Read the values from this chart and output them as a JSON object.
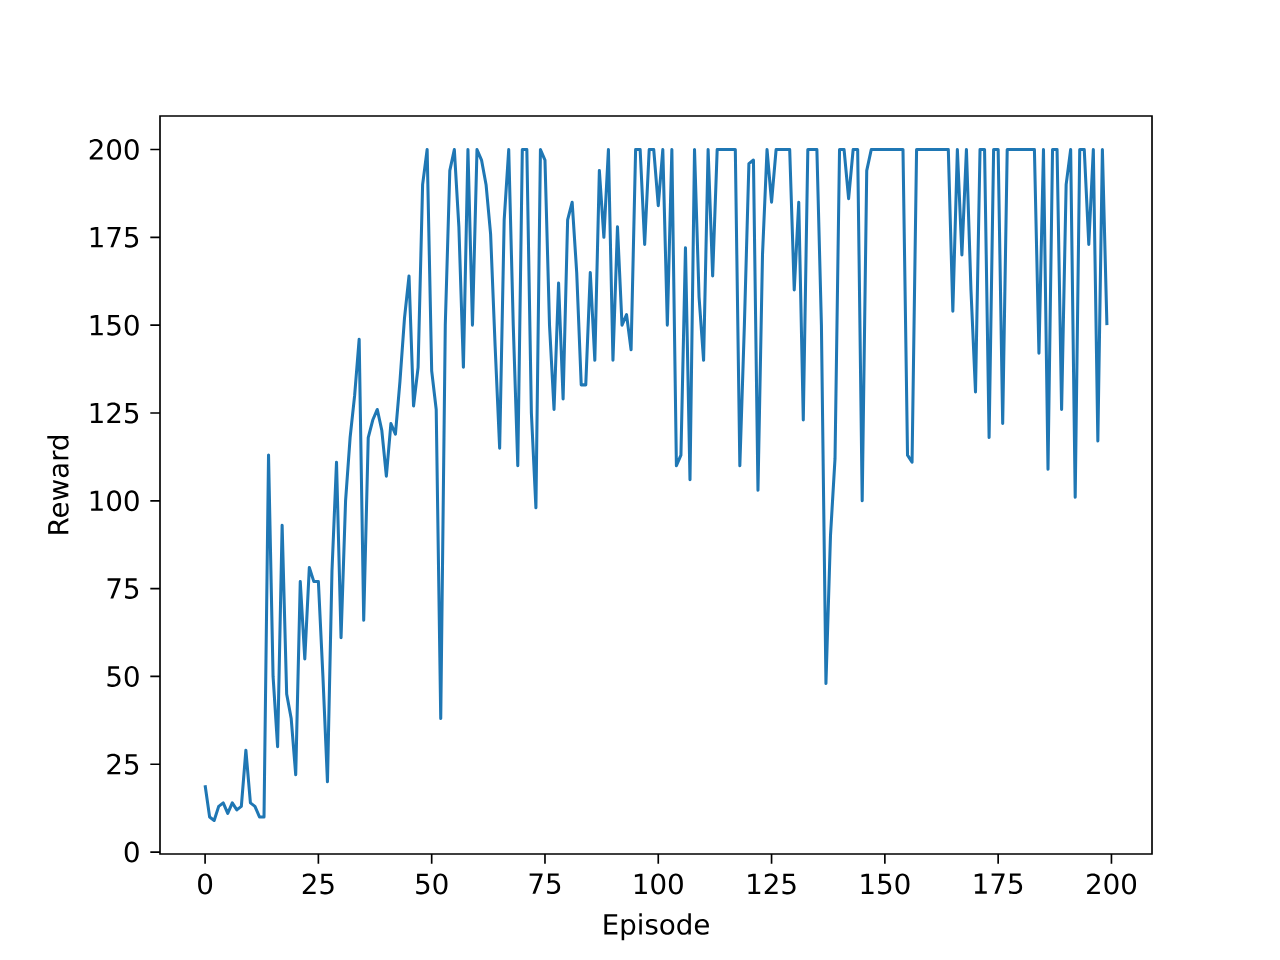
{
  "chart_data": {
    "type": "line",
    "xlabel": "Episode",
    "ylabel": "Reward",
    "xlim": [
      -9.95,
      208.95
    ],
    "ylim": [
      -0.55,
      209.55
    ],
    "xticks": [
      0,
      25,
      50,
      75,
      100,
      125,
      150,
      175,
      200
    ],
    "yticks": [
      0,
      25,
      50,
      75,
      100,
      125,
      150,
      175,
      200
    ],
    "x": [
      0,
      1,
      2,
      3,
      4,
      5,
      6,
      7,
      8,
      9,
      10,
      11,
      12,
      13,
      14,
      15,
      16,
      17,
      18,
      19,
      20,
      21,
      22,
      23,
      24,
      25,
      26,
      27,
      28,
      29,
      30,
      31,
      32,
      33,
      34,
      35,
      36,
      37,
      38,
      39,
      40,
      41,
      42,
      43,
      44,
      45,
      46,
      47,
      48,
      49,
      50,
      51,
      52,
      53,
      54,
      55,
      56,
      57,
      58,
      59,
      60,
      61,
      62,
      63,
      64,
      65,
      66,
      67,
      68,
      69,
      70,
      71,
      72,
      73,
      74,
      75,
      76,
      77,
      78,
      79,
      80,
      81,
      82,
      83,
      84,
      85,
      86,
      87,
      88,
      89,
      90,
      91,
      92,
      93,
      94,
      95,
      96,
      97,
      98,
      99,
      100,
      101,
      102,
      103,
      104,
      105,
      106,
      107,
      108,
      109,
      110,
      111,
      112,
      113,
      114,
      115,
      116,
      117,
      118,
      119,
      120,
      121,
      122,
      123,
      124,
      125,
      126,
      127,
      128,
      129,
      130,
      131,
      132,
      133,
      134,
      135,
      136,
      137,
      138,
      139,
      140,
      141,
      142,
      143,
      144,
      145,
      146,
      147,
      148,
      149,
      150,
      151,
      152,
      153,
      154,
      155,
      156,
      157,
      158,
      159,
      160,
      161,
      162,
      163,
      164,
      165,
      166,
      167,
      168,
      169,
      170,
      171,
      172,
      173,
      174,
      175,
      176,
      177,
      178,
      179,
      180,
      181,
      182,
      183,
      184,
      185,
      186,
      187,
      188,
      189,
      190,
      191,
      192,
      193,
      194,
      195,
      196,
      197,
      198,
      199
    ],
    "series": [
      {
        "color": "#1f77b4",
        "values": [
          19,
          10,
          9,
          13,
          14,
          11,
          14,
          12,
          13,
          29,
          14,
          13,
          10,
          10,
          113,
          50,
          30,
          93,
          45,
          38,
          22,
          77,
          55,
          81,
          77,
          77,
          50,
          20,
          80,
          111,
          61,
          100,
          118,
          130,
          146,
          66,
          118,
          123,
          126,
          120,
          107,
          122,
          119,
          134,
          152,
          164,
          127,
          138,
          190,
          200,
          137,
          126,
          38,
          150,
          194,
          200,
          178,
          138,
          200,
          150,
          200,
          197,
          190,
          176,
          144,
          115,
          180,
          200,
          150,
          110,
          200,
          200,
          125,
          98,
          200,
          197,
          150,
          126,
          162,
          129,
          180,
          185,
          165,
          133,
          133,
          165,
          140,
          194,
          175,
          200,
          140,
          178,
          150,
          153,
          143,
          200,
          200,
          173,
          200,
          200,
          184,
          200,
          150,
          200,
          110,
          113,
          172,
          106,
          200,
          158,
          140,
          200,
          164,
          200,
          200,
          200,
          200,
          200,
          110,
          150,
          196,
          197,
          103,
          170,
          200,
          185,
          200,
          200,
          200,
          200,
          160,
          185,
          123,
          200,
          200,
          200,
          150,
          48,
          90,
          112,
          200,
          200,
          186,
          200,
          200,
          100,
          194,
          200,
          200,
          200,
          200,
          200,
          200,
          200,
          200,
          113,
          111,
          200,
          200,
          200,
          200,
          200,
          200,
          200,
          200,
          154,
          200,
          170,
          200,
          160,
          131,
          200,
          200,
          118,
          200,
          200,
          122,
          200,
          200,
          200,
          200,
          200,
          200,
          200,
          142,
          200,
          109,
          200,
          200,
          126,
          190,
          200,
          101,
          200,
          200,
          173,
          200,
          117,
          200,
          150
        ]
      }
    ]
  }
}
